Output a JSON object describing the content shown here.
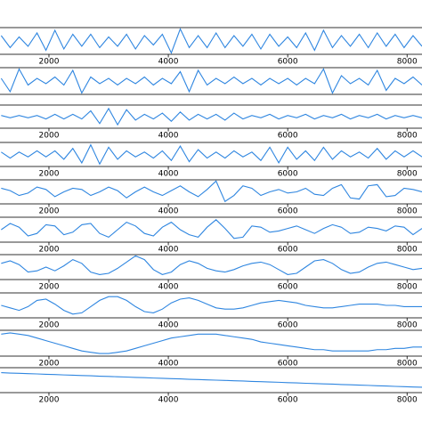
{
  "chart_data": [
    {
      "type": "line",
      "x": [
        1200,
        1350,
        1500,
        1650,
        1800,
        1950,
        2100,
        2250,
        2400,
        2550,
        2700,
        2850,
        3000,
        3150,
        3300,
        3450,
        3600,
        3750,
        3900,
        4050,
        4200,
        4350,
        4500,
        4650,
        4800,
        4950,
        5100,
        5250,
        5400,
        5550,
        5700,
        5850,
        6000,
        6150,
        6300,
        6450,
        6600,
        6750,
        6900,
        7050,
        7200,
        7350,
        7500,
        7650,
        7800,
        7950,
        8100,
        8250
      ],
      "series": [
        {
          "color": "#2f86e0",
          "values": [
            0.4,
            -0.5,
            0.3,
            -0.4,
            0.6,
            -0.7,
            0.8,
            -0.6,
            0.5,
            -0.4,
            0.5,
            -0.5,
            0.3,
            -0.4,
            0.5,
            -0.6,
            0.4,
            -0.3,
            0.5,
            -0.9,
            0.9,
            -0.5,
            0.4,
            -0.5,
            0.6,
            -0.5,
            0.4,
            -0.4,
            0.5,
            -0.6,
            0.5,
            -0.4,
            0.3,
            -0.5,
            0.6,
            -0.7,
            0.8,
            -0.5,
            0.4,
            -0.4,
            0.5,
            -0.5,
            0.6,
            -0.4,
            0.5,
            -0.5,
            0.4,
            -0.4
          ]
        }
      ],
      "xlim": [
        1180,
        8250
      ],
      "ylim": [
        -1,
        1
      ],
      "xticks": [
        2000,
        4000,
        6000,
        8000
      ]
    },
    {
      "type": "line",
      "x": [
        1200,
        1350,
        1500,
        1650,
        1800,
        1950,
        2100,
        2250,
        2400,
        2550,
        2700,
        2850,
        3000,
        3150,
        3300,
        3450,
        3600,
        3750,
        3900,
        4050,
        4200,
        4350,
        4500,
        4650,
        4800,
        4950,
        5100,
        5250,
        5400,
        5550,
        5700,
        5850,
        6000,
        6150,
        6300,
        6450,
        6600,
        6750,
        6900,
        7050,
        7200,
        7350,
        7500,
        7650,
        7800,
        7950,
        8100,
        8250
      ],
      "series": [
        {
          "color": "#2f86e0",
          "values": [
            0.2,
            -0.8,
            0.9,
            -0.3,
            0.2,
            -0.2,
            0.3,
            -0.3,
            0.8,
            -0.9,
            0.3,
            -0.2,
            0.2,
            -0.3,
            0.2,
            -0.2,
            0.3,
            -0.3,
            0.2,
            -0.2,
            0.7,
            -0.8,
            0.8,
            -0.3,
            0.2,
            -0.2,
            0.3,
            -0.2,
            0.2,
            -0.3,
            0.2,
            -0.2,
            0.2,
            -0.3,
            0.2,
            -0.2,
            0.9,
            -0.9,
            0.4,
            -0.2,
            0.2,
            -0.3,
            0.8,
            -0.7,
            0.2,
            -0.2,
            0.3,
            -0.3
          ]
        }
      ],
      "xlim": [
        1180,
        8250
      ],
      "ylim": [
        -1,
        1
      ]
    },
    {
      "type": "line",
      "x": [
        1200,
        1350,
        1500,
        1650,
        1800,
        1950,
        2100,
        2250,
        2400,
        2550,
        2700,
        2850,
        3000,
        3150,
        3300,
        3450,
        3600,
        3750,
        3900,
        4050,
        4200,
        4350,
        4500,
        4650,
        4800,
        4950,
        5100,
        5250,
        5400,
        5550,
        5700,
        5850,
        6000,
        6150,
        6300,
        6450,
        6600,
        6750,
        6900,
        7050,
        7200,
        7350,
        7500,
        7650,
        7800,
        7950,
        8100,
        8250
      ],
      "series": [
        {
          "color": "#2f86e0",
          "values": [
            0.1,
            -0.1,
            0.1,
            -0.1,
            0.1,
            -0.2,
            0.2,
            -0.2,
            0.2,
            -0.2,
            0.5,
            -0.6,
            0.7,
            -0.7,
            0.6,
            -0.3,
            0.2,
            -0.2,
            0.3,
            -0.4,
            0.4,
            -0.3,
            0.2,
            -0.2,
            0.2,
            -0.3,
            0.3,
            -0.2,
            0.1,
            -0.1,
            0.2,
            -0.2,
            0.1,
            -0.1,
            0.2,
            -0.2,
            0.1,
            -0.1,
            0.2,
            -0.2,
            0.1,
            -0.1,
            0.2,
            -0.2,
            0.1,
            -0.1,
            0.1,
            -0.1
          ]
        }
      ],
      "xlim": [
        1180,
        8250
      ],
      "ylim": [
        -1,
        1
      ],
      "xticks": [
        2000,
        4000,
        6000,
        8000
      ]
    },
    {
      "type": "line",
      "x": [
        1200,
        1350,
        1500,
        1650,
        1800,
        1950,
        2100,
        2250,
        2400,
        2550,
        2700,
        2850,
        3000,
        3150,
        3300,
        3450,
        3600,
        3750,
        3900,
        4050,
        4200,
        4350,
        4500,
        4650,
        4800,
        4950,
        5100,
        5250,
        5400,
        5550,
        5700,
        5850,
        6000,
        6150,
        6300,
        6450,
        6600,
        6750,
        6900,
        7050,
        7200,
        7350,
        7500,
        7650,
        7800,
        7950,
        8100,
        8250
      ],
      "series": [
        {
          "color": "#2f86e0",
          "values": [
            0.2,
            -0.3,
            0.2,
            -0.2,
            0.3,
            -0.2,
            0.3,
            -0.4,
            0.5,
            -0.7,
            0.8,
            -0.8,
            0.6,
            -0.4,
            0.3,
            -0.2,
            0.2,
            -0.3,
            0.3,
            -0.5,
            0.7,
            -0.6,
            0.4,
            -0.3,
            0.2,
            -0.3,
            0.3,
            -0.2,
            0.2,
            -0.5,
            0.6,
            -0.7,
            0.6,
            -0.4,
            0.3,
            -0.5,
            0.6,
            -0.4,
            0.3,
            -0.2,
            0.2,
            -0.3,
            0.5,
            -0.4,
            0.3,
            -0.2,
            0.3,
            -0.2
          ]
        }
      ],
      "xlim": [
        1180,
        8250
      ],
      "ylim": [
        -1,
        1
      ],
      "xticks": [
        2000,
        4000,
        6000,
        8000
      ]
    },
    {
      "type": "line",
      "x": [
        1200,
        1350,
        1500,
        1650,
        1800,
        1950,
        2100,
        2250,
        2400,
        2550,
        2700,
        2850,
        3000,
        3150,
        3300,
        3450,
        3600,
        3750,
        3900,
        4050,
        4200,
        4350,
        4500,
        4650,
        4800,
        4950,
        5100,
        5250,
        5400,
        5550,
        5700,
        5850,
        6000,
        6150,
        6300,
        6450,
        6600,
        6750,
        6900,
        7050,
        7200,
        7350,
        7500,
        7650,
        7800,
        7950,
        8100,
        8250
      ],
      "series": [
        {
          "color": "#2f86e0",
          "values": [
            0.3,
            0.1,
            -0.3,
            -0.1,
            0.4,
            0.2,
            -0.4,
            0,
            0.3,
            0.2,
            -0.3,
            0,
            0.4,
            0.1,
            -0.5,
            0,
            0.4,
            0,
            -0.3,
            0.1,
            0.5,
            0,
            -0.4,
            0.2,
            0.9,
            -0.8,
            -0.3,
            0.5,
            0.3,
            -0.3,
            0,
            0.2,
            -0.1,
            0,
            0.3,
            -0.2,
            -0.3,
            0.3,
            0.6,
            -0.5,
            -0.6,
            0.5,
            0.6,
            -0.4,
            -0.3,
            0.3,
            0.2,
            0
          ]
        }
      ],
      "xlim": [
        1180,
        8250
      ],
      "ylim": [
        -1,
        1
      ],
      "xticks": [
        2000,
        4000,
        6000,
        8000
      ]
    },
    {
      "type": "line",
      "x": [
        1200,
        1350,
        1500,
        1650,
        1800,
        1950,
        2100,
        2250,
        2400,
        2550,
        2700,
        2850,
        3000,
        3150,
        3300,
        3450,
        3600,
        3750,
        3900,
        4050,
        4200,
        4350,
        4500,
        4650,
        4800,
        4950,
        5100,
        5250,
        5400,
        5550,
        5700,
        5850,
        6000,
        6150,
        6300,
        6450,
        6600,
        6750,
        6900,
        7050,
        7200,
        7350,
        7500,
        7650,
        7800,
        7950,
        8100,
        8250
      ],
      "series": [
        {
          "color": "#2f86e0",
          "values": [
            0,
            0.5,
            0.2,
            -0.5,
            -0.3,
            0.4,
            0.3,
            -0.4,
            -0.2,
            0.4,
            0.5,
            -0.3,
            -0.6,
            0,
            0.6,
            0.3,
            -0.3,
            -0.5,
            0.2,
            0.6,
            0,
            -0.4,
            -0.6,
            0.2,
            0.8,
            0.1,
            -0.7,
            -0.6,
            0.3,
            0.2,
            -0.2,
            -0.1,
            0.1,
            0.3,
            0,
            -0.3,
            0.1,
            0.4,
            0.2,
            -0.3,
            -0.2,
            0.2,
            0.1,
            -0.1,
            0.3,
            0.2,
            -0.4,
            0.1
          ]
        }
      ],
      "xlim": [
        1180,
        8250
      ],
      "ylim": [
        -1,
        1
      ],
      "xticks": [
        2000,
        4000,
        6000,
        8000
      ]
    },
    {
      "type": "line",
      "x": [
        1200,
        1350,
        1500,
        1650,
        1800,
        1950,
        2100,
        2250,
        2400,
        2550,
        2700,
        2850,
        3000,
        3150,
        3300,
        3450,
        3600,
        3750,
        3900,
        4050,
        4200,
        4350,
        4500,
        4650,
        4800,
        4950,
        5100,
        5250,
        5400,
        5550,
        5700,
        5850,
        6000,
        6150,
        6300,
        6450,
        6600,
        6750,
        6900,
        7050,
        7200,
        7350,
        7500,
        7650,
        7800,
        7950,
        8100,
        8250
      ],
      "series": [
        {
          "color": "#2f86e0",
          "values": [
            0.3,
            0.5,
            0.2,
            -0.4,
            -0.3,
            0,
            -0.3,
            0.1,
            0.6,
            0.3,
            -0.4,
            -0.6,
            -0.5,
            -0.1,
            0.4,
            0.9,
            0.6,
            -0.2,
            -0.6,
            -0.4,
            0.2,
            0.5,
            0.3,
            -0.1,
            -0.3,
            -0.4,
            -0.2,
            0.1,
            0.3,
            0.4,
            0.2,
            -0.2,
            -0.6,
            -0.5,
            0,
            0.5,
            0.6,
            0.3,
            -0.2,
            -0.5,
            -0.4,
            0,
            0.3,
            0.4,
            0.2,
            0,
            -0.2,
            -0.1
          ]
        }
      ],
      "xlim": [
        1180,
        8250
      ],
      "ylim": [
        -1,
        1
      ],
      "xticks": [
        2000,
        4000,
        6000,
        8000
      ]
    },
    {
      "type": "line",
      "x": [
        1200,
        1350,
        1500,
        1650,
        1800,
        1950,
        2100,
        2250,
        2400,
        2550,
        2700,
        2850,
        3000,
        3150,
        3300,
        3450,
        3600,
        3750,
        3900,
        4050,
        4200,
        4350,
        4500,
        4650,
        4800,
        4950,
        5100,
        5250,
        5400,
        5550,
        5700,
        5850,
        6000,
        6150,
        6300,
        6450,
        6600,
        6750,
        6900,
        7050,
        7200,
        7350,
        7500,
        7650,
        7800,
        7950,
        8100,
        8250
      ],
      "series": [
        {
          "color": "#2f86e0",
          "values": [
            0,
            -0.2,
            -0.4,
            -0.1,
            0.4,
            0.5,
            0.1,
            -0.4,
            -0.7,
            -0.6,
            -0.1,
            0.4,
            0.7,
            0.7,
            0.4,
            -0.1,
            -0.5,
            -0.6,
            -0.3,
            0.2,
            0.5,
            0.6,
            0.4,
            0.1,
            -0.2,
            -0.3,
            -0.3,
            -0.2,
            0,
            0.2,
            0.3,
            0.4,
            0.3,
            0.2,
            0,
            -0.1,
            -0.2,
            -0.2,
            -0.1,
            0,
            0.1,
            0.1,
            0.1,
            0,
            0,
            -0.1,
            -0.1,
            -0.1
          ]
        }
      ],
      "xlim": [
        1180,
        8250
      ],
      "ylim": [
        -1,
        1
      ],
      "xticks": [
        2000,
        4000,
        6000,
        8000
      ]
    },
    {
      "type": "line",
      "x": [
        1200,
        1350,
        1500,
        1650,
        1800,
        1950,
        2100,
        2250,
        2400,
        2550,
        2700,
        2850,
        3000,
        3150,
        3300,
        3450,
        3600,
        3750,
        3900,
        4050,
        4200,
        4350,
        4500,
        4650,
        4800,
        4950,
        5100,
        5250,
        5400,
        5550,
        5700,
        5850,
        6000,
        6150,
        6300,
        6450,
        6600,
        6750,
        6900,
        7050,
        7200,
        7350,
        7500,
        7650,
        7800,
        7950,
        8100,
        8250
      ],
      "series": [
        {
          "color": "#2f86e0",
          "values": [
            0.7,
            0.8,
            0.7,
            0.6,
            0.4,
            0.2,
            0,
            -0.2,
            -0.4,
            -0.6,
            -0.7,
            -0.8,
            -0.8,
            -0.7,
            -0.6,
            -0.4,
            -0.2,
            0,
            0.2,
            0.4,
            0.5,
            0.6,
            0.7,
            0.7,
            0.7,
            0.6,
            0.5,
            0.4,
            0.3,
            0.1,
            0,
            -0.1,
            -0.2,
            -0.3,
            -0.4,
            -0.5,
            -0.5,
            -0.6,
            -0.6,
            -0.6,
            -0.6,
            -0.6,
            -0.5,
            -0.5,
            -0.4,
            -0.4,
            -0.3,
            -0.3
          ]
        }
      ],
      "xlim": [
        1180,
        8250
      ],
      "ylim": [
        -1,
        1
      ],
      "xticks": [
        2000,
        4000,
        6000,
        8000
      ]
    },
    {
      "type": "line",
      "x": [
        1200,
        1350,
        1500,
        1650,
        1800,
        1950,
        2100,
        2250,
        2400,
        2550,
        2700,
        2850,
        3000,
        3150,
        3300,
        3450,
        3600,
        3750,
        3900,
        4050,
        4200,
        4350,
        4500,
        4650,
        4800,
        4950,
        5100,
        5250,
        5400,
        5550,
        5700,
        5850,
        6000,
        6150,
        6300,
        6450,
        6600,
        6750,
        6900,
        7050,
        7200,
        7350,
        7500,
        7650,
        7800,
        7950,
        8100,
        8250
      ],
      "series": [
        {
          "color": "#2f86e0",
          "values": [
            0.6,
            0.57,
            0.55,
            0.52,
            0.5,
            0.47,
            0.45,
            0.42,
            0.4,
            0.37,
            0.35,
            0.32,
            0.3,
            0.27,
            0.25,
            0.22,
            0.2,
            0.17,
            0.15,
            0.12,
            0.1,
            0.07,
            0.05,
            0.02,
            0,
            -0.02,
            -0.05,
            -0.07,
            -0.1,
            -0.12,
            -0.15,
            -0.17,
            -0.2,
            -0.22,
            -0.25,
            -0.27,
            -0.3,
            -0.32,
            -0.35,
            -0.37,
            -0.4,
            -0.42,
            -0.45,
            -0.47,
            -0.5,
            -0.52,
            -0.55,
            -0.57
          ]
        }
      ],
      "xlim": [
        1180,
        8250
      ],
      "ylim": [
        -1,
        1
      ],
      "xticks": [
        2000,
        4000,
        6000,
        8000
      ]
    }
  ]
}
